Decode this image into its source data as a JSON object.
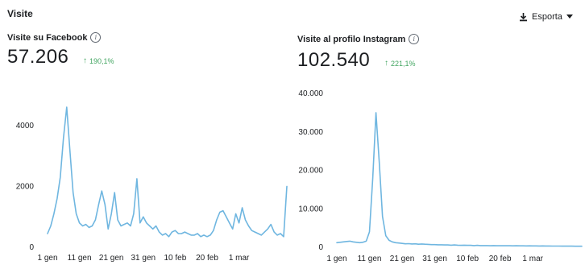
{
  "section": {
    "title": "Visite"
  },
  "toolbar": {
    "export_label": "Esporta"
  },
  "facebook": {
    "title": "Visite su Facebook",
    "value": "57.206",
    "delta": "190,1%"
  },
  "instagram": {
    "title": "Visite al profilo Instagram",
    "value": "102.540",
    "delta": "221,1%"
  },
  "colors": {
    "line": "#6fb6e0",
    "positive": "#42a561",
    "grid": "#e4e6eb"
  },
  "chart_data": [
    {
      "type": "line",
      "id": "facebook",
      "ylim": [
        0,
        5000
      ],
      "y_ticks": [
        0,
        2000,
        4000
      ],
      "y_tick_labels": [
        "0",
        "2000",
        "4000"
      ],
      "xlim": [
        0,
        75
      ],
      "x_ticks": [
        0,
        10,
        20,
        30,
        40,
        50,
        60
      ],
      "x_tick_labels": [
        "1 gen",
        "11 gen",
        "21 gen",
        "31 gen",
        "10 feb",
        "20 feb",
        "1 mar"
      ],
      "grid": false,
      "series": [
        {
          "values": [
            450,
            700,
            1100,
            1600,
            2300,
            3600,
            4600,
            3200,
            1800,
            1100,
            800,
            700,
            750,
            650,
            700,
            900,
            1400,
            1850,
            1400,
            600,
            1100,
            1800,
            900,
            700,
            750,
            800,
            700,
            1100,
            2250,
            800,
            1000,
            800,
            700,
            600,
            700,
            500,
            400,
            450,
            350,
            500,
            550,
            450,
            450,
            500,
            450,
            400,
            400,
            450,
            350,
            400,
            350,
            400,
            550,
            900,
            1150,
            1200,
            1000,
            800,
            600,
            1100,
            800,
            1300,
            900,
            700,
            550,
            500,
            450,
            400,
            500,
            600,
            750,
            500,
            400,
            450,
            350,
            2000
          ]
        }
      ]
    },
    {
      "type": "line",
      "id": "instagram",
      "ylim": [
        0,
        40000
      ],
      "y_ticks": [
        0,
        10000,
        20000,
        30000,
        40000
      ],
      "y_tick_labels": [
        "0",
        "10.000",
        "20.000",
        "30.000",
        "40.000"
      ],
      "xlim": [
        0,
        75
      ],
      "x_ticks": [
        0,
        10,
        20,
        30,
        40,
        50,
        60
      ],
      "x_tick_labels": [
        "1 gen",
        "11 gen",
        "21 gen",
        "31 gen",
        "10 feb",
        "20 feb",
        "1 mar"
      ],
      "grid": false,
      "series": [
        {
          "values": [
            1200,
            1300,
            1400,
            1500,
            1600,
            1400,
            1300,
            1200,
            1300,
            1600,
            4000,
            18000,
            35000,
            22000,
            8000,
            3000,
            1800,
            1400,
            1200,
            1100,
            1000,
            900,
            950,
            850,
            900,
            800,
            850,
            800,
            750,
            700,
            700,
            650,
            650,
            600,
            600,
            550,
            600,
            550,
            500,
            550,
            500,
            500,
            450,
            500,
            450,
            450,
            450,
            400,
            450,
            400,
            400,
            400,
            420,
            400,
            380,
            400,
            380,
            380,
            360,
            380,
            350,
            350,
            340,
            350,
            330,
            330,
            320,
            320,
            310,
            300,
            300,
            290,
            290,
            280,
            280,
            280
          ]
        }
      ]
    }
  ]
}
